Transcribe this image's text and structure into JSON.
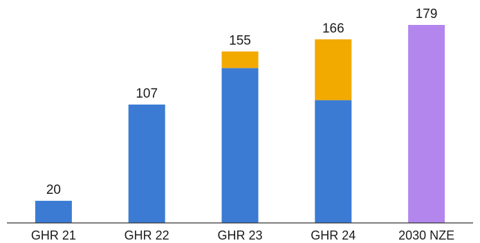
{
  "chart_data": {
    "type": "bar",
    "stacked": true,
    "categories": [
      "GHR 21",
      "GHR 22",
      "GHR 23",
      "GHR 24",
      "2030 NZE"
    ],
    "totals": [
      "20",
      "107",
      "155",
      "166",
      "179"
    ],
    "series": [
      {
        "color": "#3b7bd4",
        "values": [
          20,
          107,
          140,
          111,
          0
        ]
      },
      {
        "color": "#f2a900",
        "values": [
          0,
          0,
          15,
          55,
          0
        ]
      },
      {
        "color": "#b286ec",
        "values": [
          0,
          0,
          0,
          0,
          179
        ]
      }
    ],
    "ylim": [
      0,
      200
    ],
    "grid": false,
    "legend": "none",
    "axis_color": "#333333"
  }
}
